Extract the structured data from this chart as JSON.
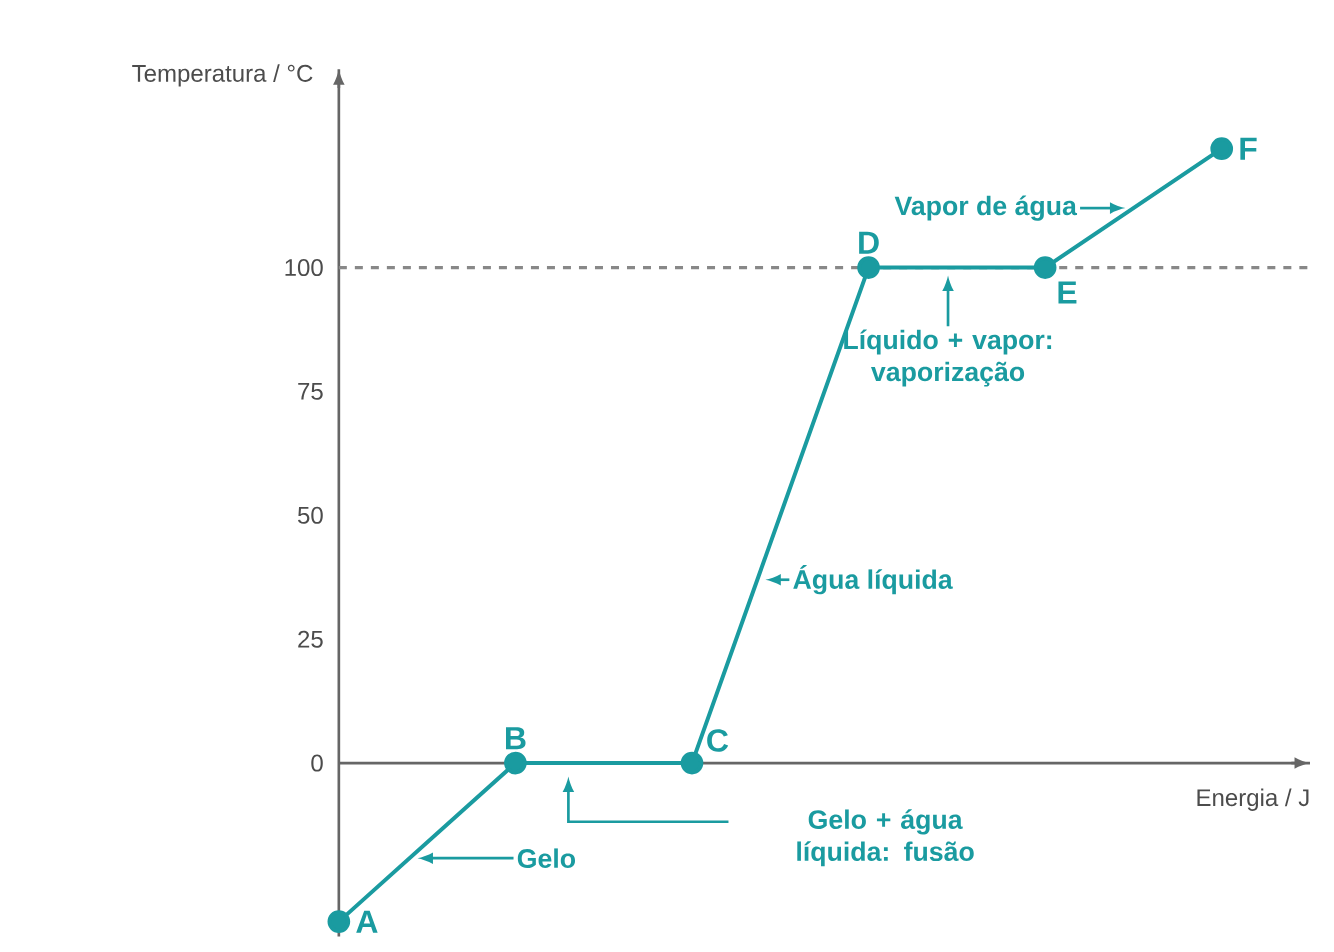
{
  "chart_data": {
    "type": "line",
    "xlabel": "Energia / J",
    "ylabel": "Temperatura / °C",
    "categories": [
      null,
      null,
      null,
      null,
      null,
      null
    ],
    "series": [
      {
        "color": "#1a9ba0",
        "values": [
          -32,
          0,
          0,
          100,
          100,
          124
        ]
      }
    ],
    "marker": "circle",
    "line_style": "solid",
    "ylim": [
      -35,
      140
    ],
    "yticks": [
      0,
      25,
      50,
      75,
      100
    ],
    "tick_labels": "y",
    "ref_lines": [
      {
        "axis": "y",
        "value": 100,
        "color": "#888888",
        "line_style": "dashed"
      }
    ],
    "annotations": [
      "A",
      "B",
      "C",
      "D",
      "E",
      "F",
      "Vapor de água",
      "Líquido + vapor: vaporização",
      "Água líquida",
      "Gelo + água líquida: fusão",
      "Gelo"
    ]
  }
}
